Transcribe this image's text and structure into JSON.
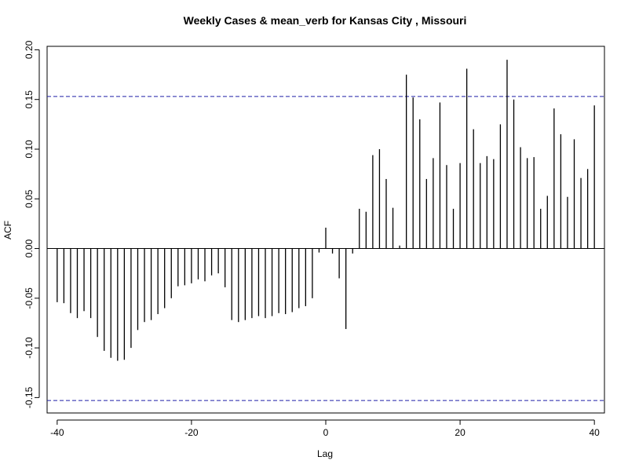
{
  "chart_data": {
    "type": "bar",
    "title": "Weekly Cases & mean_verb for Kansas City , Missouri",
    "xlabel": "Lag",
    "ylabel": "ACF",
    "xlim": [
      -41.5,
      41.5
    ],
    "ylim": [
      -0.1655,
      0.2035
    ],
    "xticks": [
      -40,
      -20,
      0,
      20,
      40
    ],
    "xtick_labels": [
      "-40",
      "-20",
      "0",
      "20",
      "40"
    ],
    "yticks": [
      -0.15,
      -0.1,
      -0.05,
      0.0,
      0.05,
      0.1,
      0.15,
      0.2
    ],
    "ytick_labels": [
      "-0.15",
      "-0.10",
      "-0.05",
      "0.00",
      "0.05",
      "0.10",
      "0.15",
      "0.20"
    ],
    "confidence_bound": 0.153,
    "grid": false,
    "series": [
      {
        "x": [
          -40,
          -39,
          -38,
          -37,
          -36,
          -35,
          -34,
          -33,
          -32,
          -31,
          -30,
          -29,
          -28,
          -27,
          -26,
          -25,
          -24,
          -23,
          -22,
          -21,
          -20,
          -19,
          -18,
          -17,
          -16,
          -15,
          -14,
          -13,
          -12,
          -11,
          -10,
          -9,
          -8,
          -7,
          -6,
          -5,
          -4,
          -3,
          -2,
          -1,
          0,
          1,
          2,
          3,
          4,
          5,
          6,
          7,
          8,
          9,
          10,
          11,
          12,
          13,
          14,
          15,
          16,
          17,
          18,
          19,
          20,
          21,
          22,
          23,
          24,
          25,
          26,
          27,
          28,
          29,
          30,
          31,
          32,
          33,
          34,
          35,
          36,
          37,
          38,
          39,
          40
        ],
        "values": [
          -0.054,
          -0.055,
          -0.065,
          -0.07,
          -0.063,
          -0.07,
          -0.089,
          -0.103,
          -0.11,
          -0.113,
          -0.112,
          -0.1,
          -0.082,
          -0.074,
          -0.072,
          -0.066,
          -0.06,
          -0.05,
          -0.038,
          -0.037,
          -0.035,
          -0.031,
          -0.033,
          -0.027,
          -0.025,
          -0.039,
          -0.072,
          -0.074,
          -0.072,
          -0.07,
          -0.068,
          -0.07,
          -0.068,
          -0.065,
          -0.066,
          -0.064,
          -0.06,
          -0.058,
          -0.05,
          -0.004,
          0.021,
          -0.005,
          -0.03,
          -0.081,
          -0.005,
          0.04,
          0.037,
          0.094,
          0.1,
          0.07,
          0.041,
          0.003,
          0.175,
          0.152,
          0.13,
          0.07,
          0.091,
          0.147,
          0.084,
          0.04,
          0.086,
          0.181,
          0.12,
          0.086,
          0.093,
          0.09,
          0.125,
          0.19,
          0.15,
          0.102,
          0.091,
          0.092,
          0.04,
          0.053,
          0.141,
          0.115,
          0.052,
          0.11,
          0.071,
          0.08,
          0.144
        ]
      }
    ]
  }
}
